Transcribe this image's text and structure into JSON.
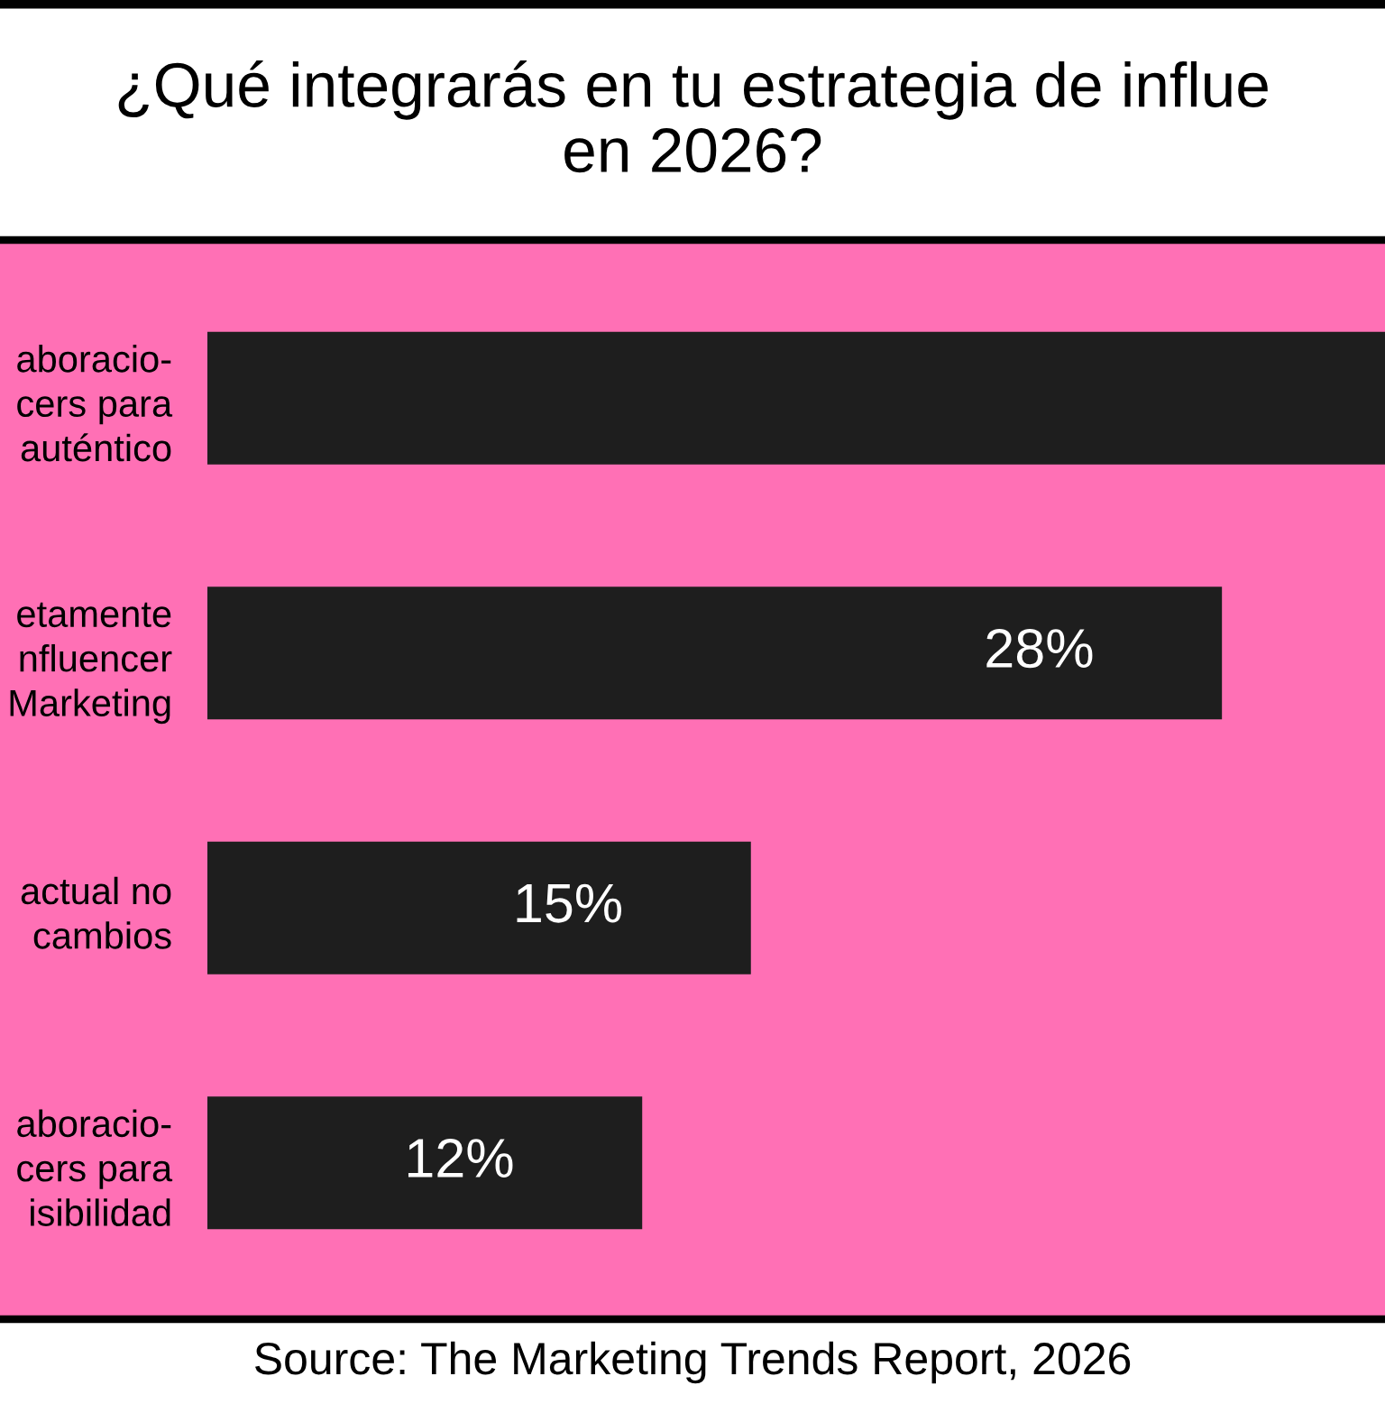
{
  "chart_data": {
    "type": "bar",
    "orientation": "horizontal",
    "title": "¿Qué integrarás en tu estrategia de influe\nen 2026?",
    "categories": [
      "aboracio-\ncers para\nauténtico",
      "etamente\nnfluencer\nMarketing",
      "actual no\ncambios",
      "aboracio-\ncers para\nisibilidad"
    ],
    "values": [
      32.5,
      28,
      15,
      12
    ],
    "value_labels": [
      null,
      "28%",
      "15%",
      "12%"
    ],
    "color": "#1e1e1e",
    "xlim": [
      0,
      32.5
    ],
    "tick_labels": "y",
    "grid": false,
    "legend": false,
    "annotations": [
      "Source: The Marketing Trends Report, 2026"
    ]
  }
}
